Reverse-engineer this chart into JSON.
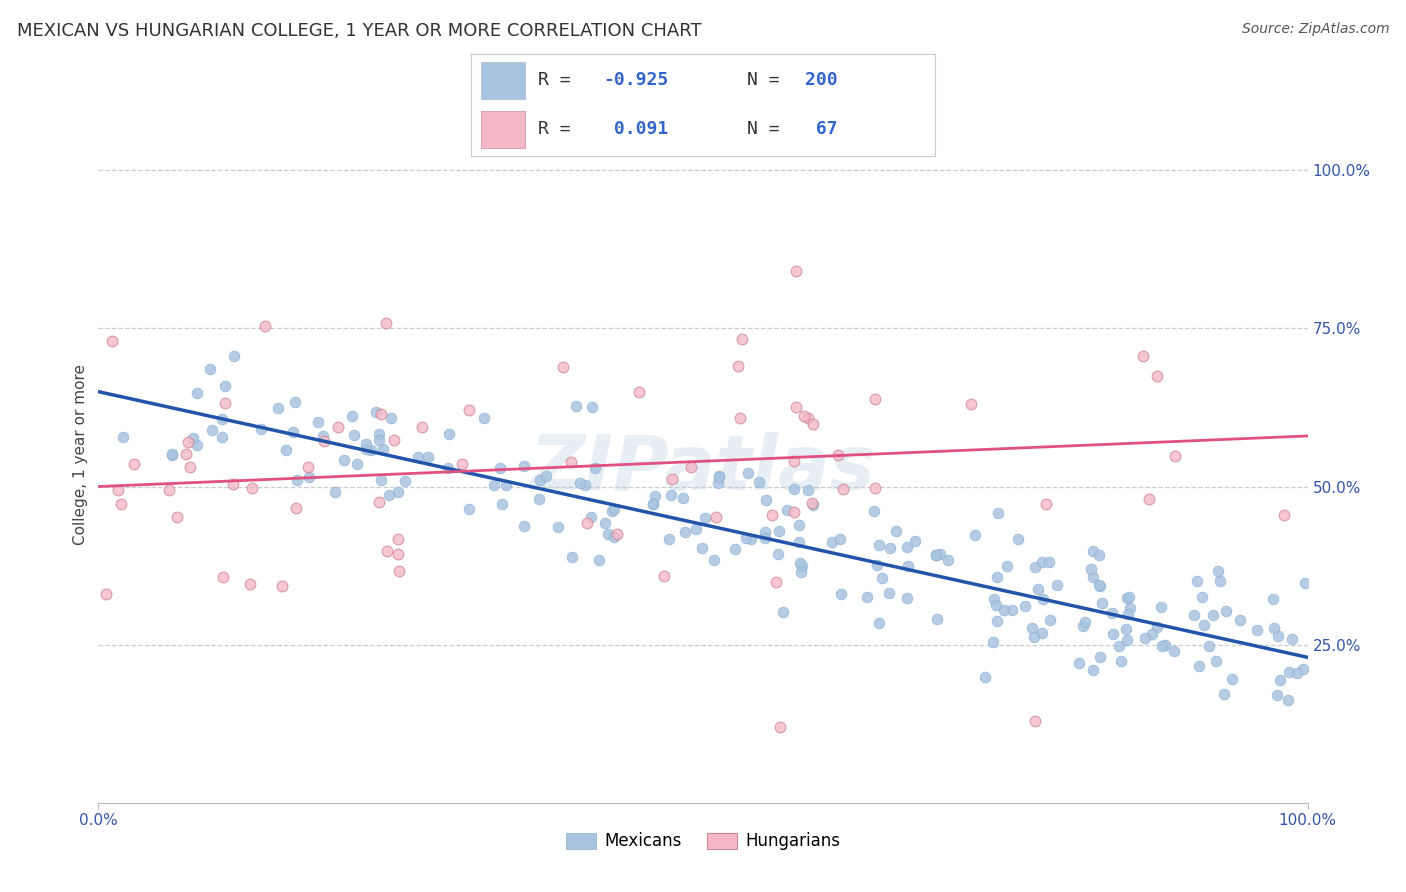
{
  "title": "MEXICAN VS HUNGARIAN COLLEGE, 1 YEAR OR MORE CORRELATION CHART",
  "source_text": "Source: ZipAtlas.com",
  "ylabel": "College, 1 year or more",
  "xlim": [
    0.0,
    1.0
  ],
  "ylim": [
    0.0,
    1.1
  ],
  "yticks": [
    0.25,
    0.5,
    0.75,
    1.0
  ],
  "ytick_labels": [
    "25.0%",
    "50.0%",
    "75.0%",
    "100.0%"
  ],
  "xtick_labels": [
    "0.0%",
    "100.0%"
  ],
  "blue_R": -0.925,
  "blue_N": 200,
  "pink_R": 0.091,
  "pink_N": 67,
  "blue_color": "#a8c4e0",
  "blue_edge_color": "#8aafd0",
  "blue_line_color": "#2255aa",
  "pink_color": "#f4b8c8",
  "pink_edge_color": "#d08898",
  "pink_line_color": "#e05080",
  "blue_marker_size": 60,
  "pink_marker_size": 60,
  "watermark": "ZIPatlas",
  "grid_color": "#cccccc",
  "grid_style": "--",
  "background_color": "#ffffff",
  "title_fontsize": 13,
  "axis_label_fontsize": 11,
  "tick_label_fontsize": 11,
  "source_fontsize": 10,
  "blue_intercept": 0.65,
  "blue_slope": -0.42,
  "pink_intercept": 0.5,
  "pink_slope": 0.08,
  "legend_text_color_label": "#333333",
  "legend_text_color_value": "#3366cc",
  "legend_fontsize": 13
}
